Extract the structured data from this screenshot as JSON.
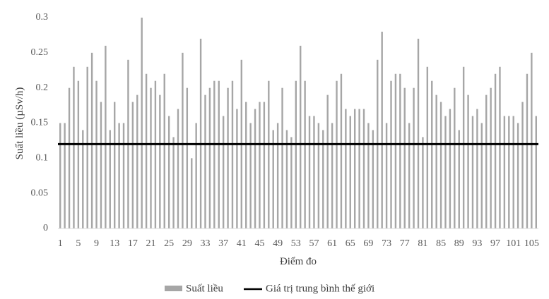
{
  "chart_data": {
    "type": "bar",
    "title": "",
    "xlabel": "Điểm đo",
    "ylabel": "Suất liều (µSv/h)",
    "ylim": [
      0,
      0.3
    ],
    "yticks": [
      "0",
      "0.05",
      "0.1",
      "0.15",
      "0.2",
      "0.25",
      "0.3"
    ],
    "xtick_labels": [
      "1",
      "5",
      "9",
      "13",
      "17",
      "21",
      "25",
      "29",
      "33",
      "37",
      "41",
      "45",
      "49",
      "53",
      "57",
      "61",
      "65",
      "69",
      "73",
      "77",
      "81",
      "85",
      "89",
      "93",
      "97",
      "101",
      "105"
    ],
    "x": [
      1,
      2,
      3,
      4,
      5,
      6,
      7,
      8,
      9,
      10,
      11,
      12,
      13,
      14,
      15,
      16,
      17,
      18,
      19,
      20,
      21,
      22,
      23,
      24,
      25,
      26,
      27,
      28,
      29,
      30,
      31,
      32,
      33,
      34,
      35,
      36,
      37,
      38,
      39,
      40,
      41,
      42,
      43,
      44,
      45,
      46,
      47,
      48,
      49,
      50,
      51,
      52,
      53,
      54,
      55,
      56,
      57,
      58,
      59,
      60,
      61,
      62,
      63,
      64,
      65,
      66,
      67,
      68,
      69,
      70,
      71,
      72,
      73,
      74,
      75,
      76,
      77,
      78,
      79,
      80,
      81,
      82,
      83,
      84,
      85,
      86,
      87,
      88,
      89,
      90,
      91,
      92,
      93,
      94,
      95,
      96,
      97,
      98,
      99,
      100,
      101,
      102,
      103,
      104,
      105,
      106
    ],
    "series": [
      {
        "name": "Suất liều",
        "color": "#a6a6a6",
        "values": [
          0.15,
          0.15,
          0.2,
          0.23,
          0.21,
          0.14,
          0.23,
          0.25,
          0.21,
          0.18,
          0.26,
          0.14,
          0.18,
          0.15,
          0.15,
          0.24,
          0.18,
          0.19,
          0.3,
          0.22,
          0.2,
          0.21,
          0.19,
          0.22,
          0.16,
          0.13,
          0.17,
          0.25,
          0.2,
          0.1,
          0.15,
          0.27,
          0.19,
          0.2,
          0.21,
          0.21,
          0.16,
          0.2,
          0.21,
          0.17,
          0.24,
          0.18,
          0.15,
          0.17,
          0.18,
          0.18,
          0.21,
          0.14,
          0.15,
          0.2,
          0.14,
          0.13,
          0.21,
          0.26,
          0.21,
          0.16,
          0.16,
          0.15,
          0.14,
          0.19,
          0.15,
          0.21,
          0.22,
          0.17,
          0.16,
          0.17,
          0.17,
          0.17,
          0.15,
          0.14,
          0.24,
          0.28,
          0.15,
          0.21,
          0.22,
          0.22,
          0.2,
          0.15,
          0.2,
          0.27,
          0.13,
          0.23,
          0.21,
          0.19,
          0.18,
          0.16,
          0.17,
          0.2,
          0.14,
          0.23,
          0.19,
          0.16,
          0.17,
          0.15,
          0.19,
          0.2,
          0.22,
          0.23,
          0.16,
          0.16,
          0.16,
          0.15,
          0.18,
          0.22,
          0.25,
          0.16
        ]
      }
    ],
    "reference_line": {
      "name": "Giá trị trung bình thế giới",
      "value": 0.12,
      "color": "#000000"
    },
    "grid": false,
    "legend_position": "bottom"
  }
}
